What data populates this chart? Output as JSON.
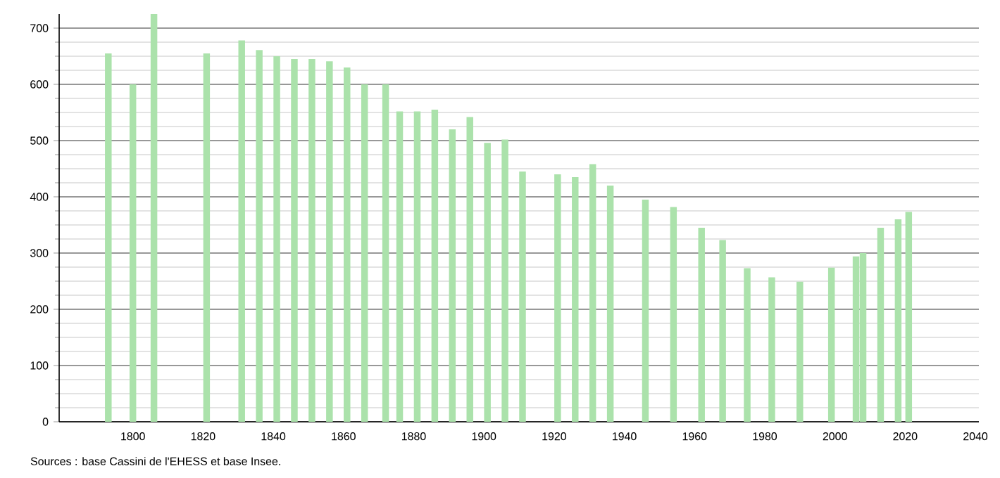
{
  "chart_data": {
    "type": "bar",
    "x": [
      1793,
      1800,
      1806,
      1821,
      1831,
      1836,
      1841,
      1846,
      1851,
      1856,
      1861,
      1866,
      1872,
      1876,
      1881,
      1886,
      1891,
      1896,
      1901,
      1906,
      1911,
      1921,
      1926,
      1931,
      1936,
      1946,
      1954,
      1962,
      1968,
      1975,
      1982,
      1990,
      1999,
      2006,
      2008,
      2013,
      2018,
      2021
    ],
    "values": [
      655,
      600,
      725,
      655,
      678,
      661,
      650,
      645,
      645,
      641,
      630,
      600,
      600,
      552,
      552,
      555,
      520,
      542,
      496,
      502,
      445,
      440,
      435,
      458,
      420,
      395,
      382,
      345,
      323,
      273,
      257,
      249,
      274,
      294,
      300,
      345,
      360,
      373
    ],
    "color": "#abe2ab",
    "xlim": [
      1779,
      2041
    ],
    "ylim": [
      0,
      725
    ],
    "xticks": [
      1800,
      1820,
      1840,
      1860,
      1880,
      1900,
      1920,
      1940,
      1960,
      1980,
      2000,
      2020,
      2040
    ],
    "yticks": [
      0,
      100,
      200,
      300,
      400,
      500,
      600,
      700
    ],
    "grid": "y",
    "annotations": [
      "Sources : base Cassini de l'EHESS et base Insee."
    ]
  }
}
